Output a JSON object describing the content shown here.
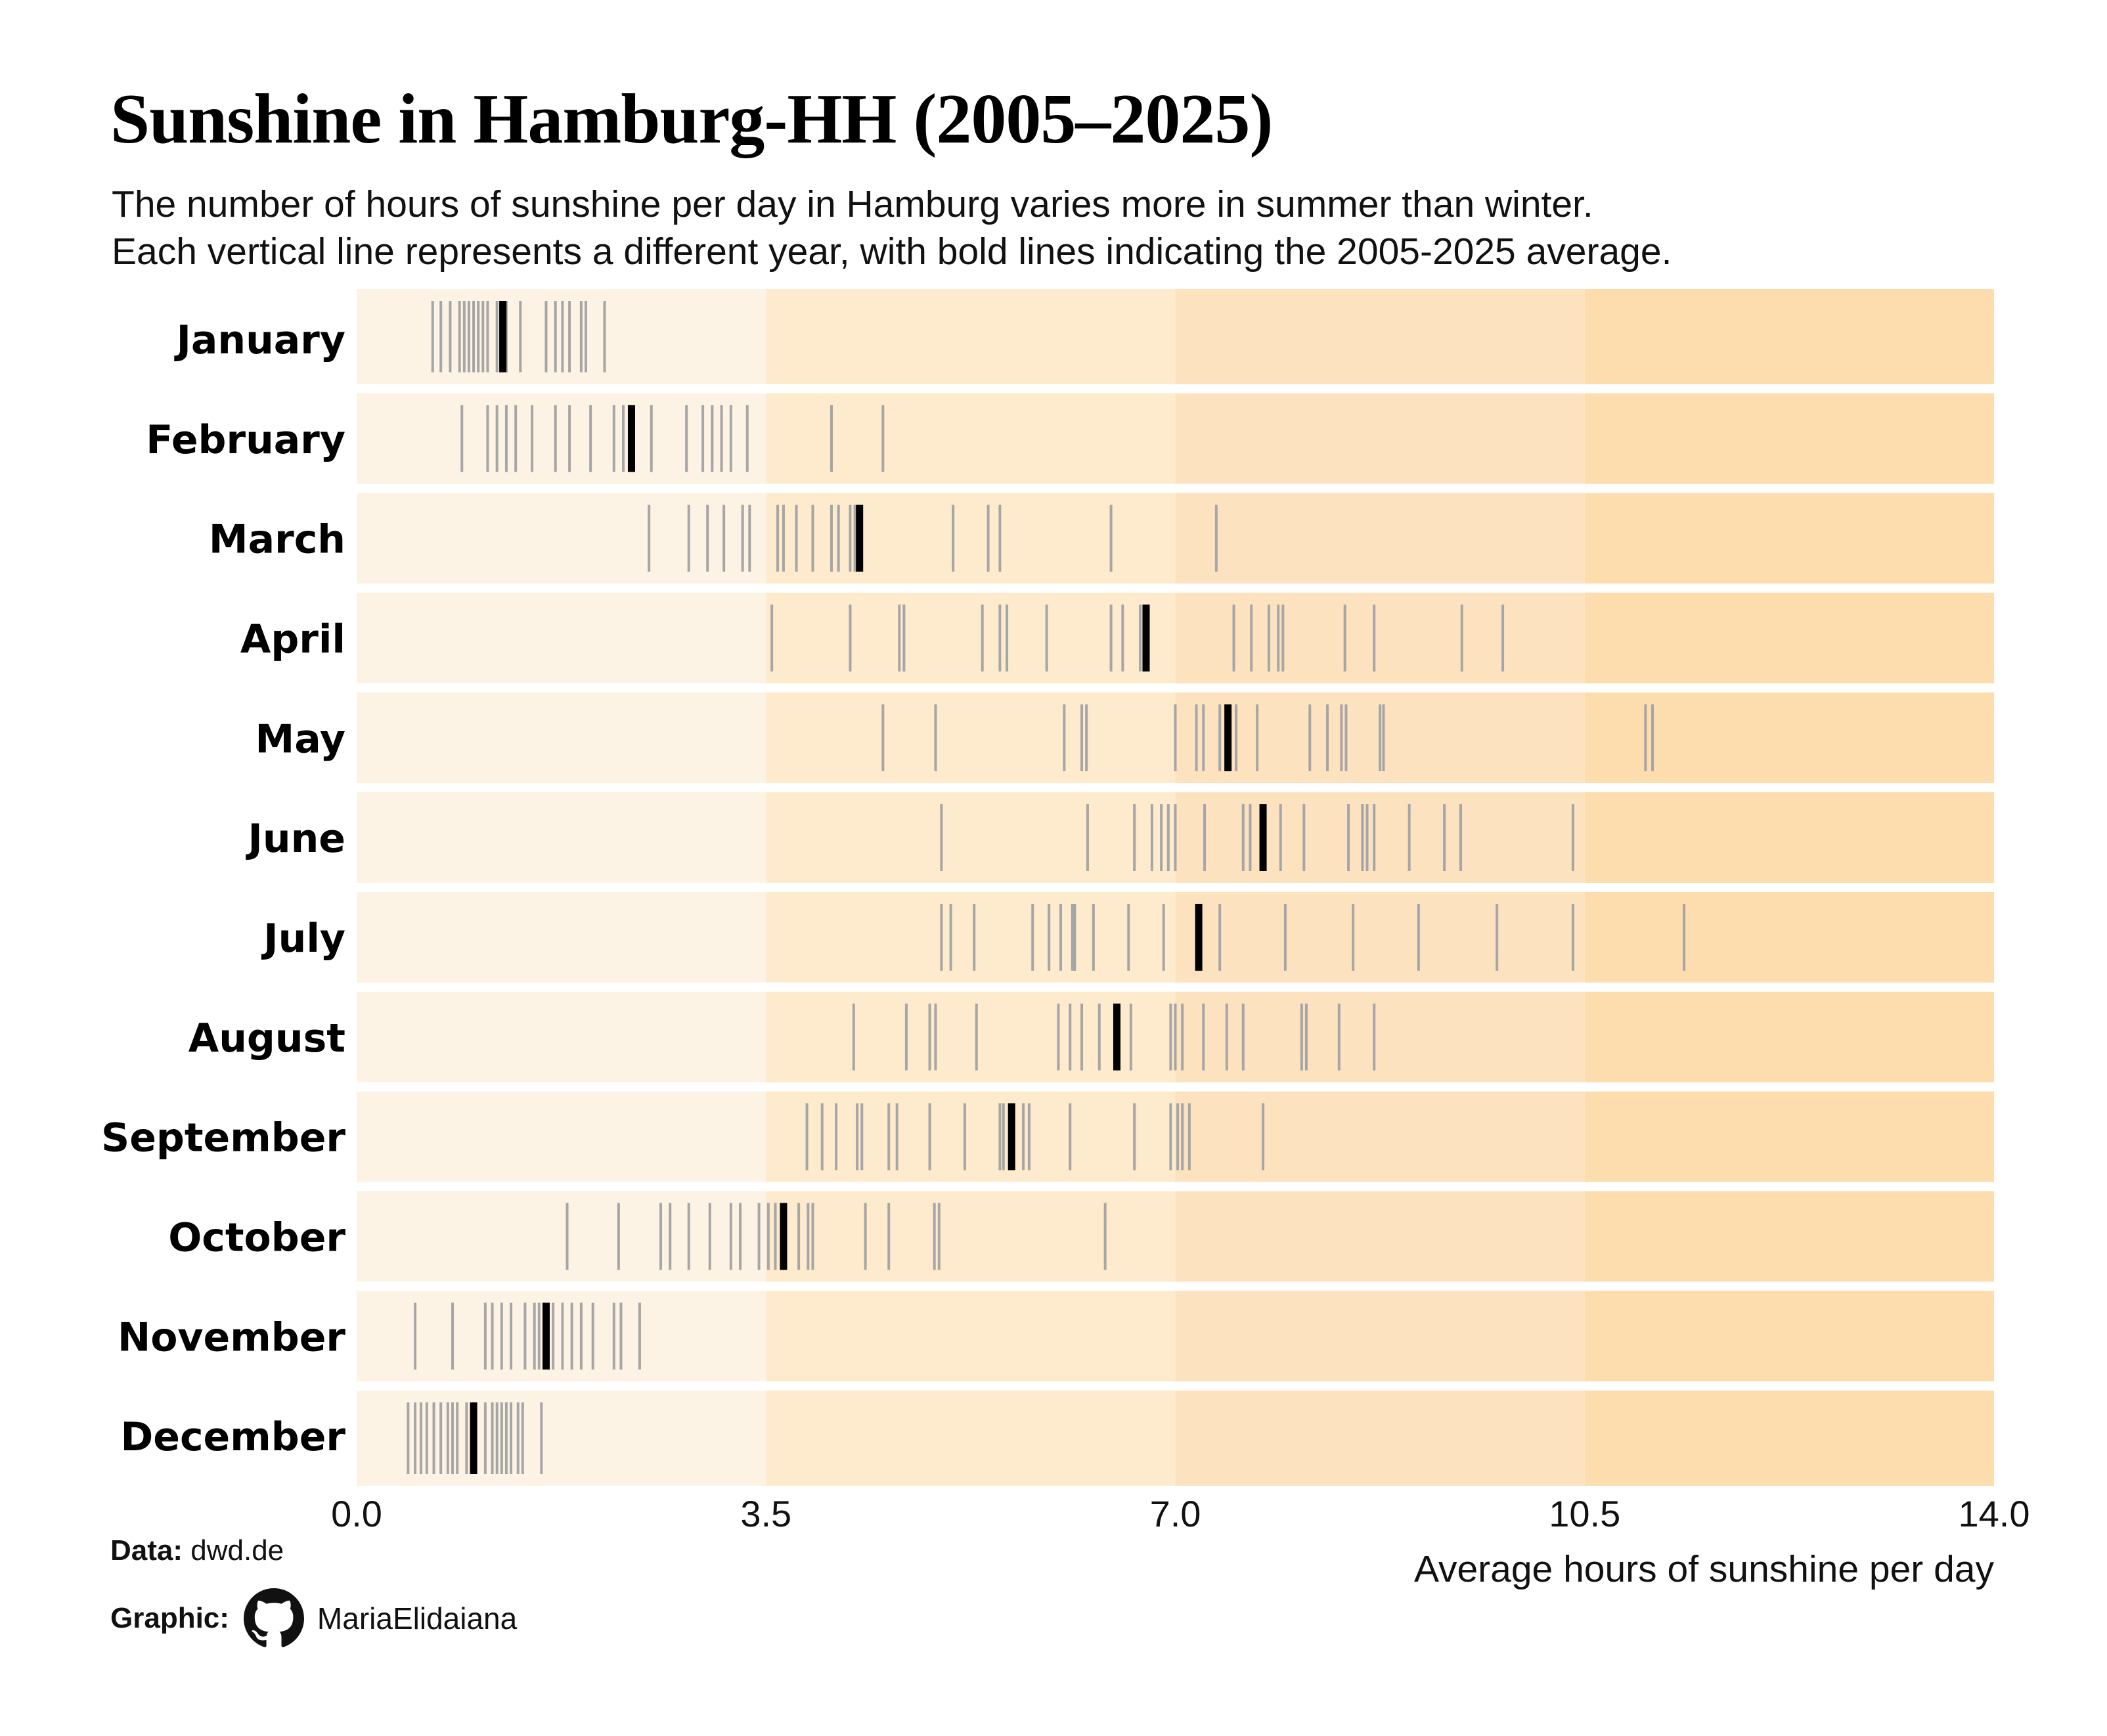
{
  "title": "Sunshine in Hamburg-HH (2005–2025)",
  "subtitle": {
    "line1": "The number of hours of sunshine per day in Hamburg varies more in summer than winter.",
    "line2": "Each vertical line represents a different year, with bold lines indicating the 2005-2025 average."
  },
  "credits": {
    "data_label": "Data:",
    "data_value": "dwd.de",
    "graphic_label": "Graphic:",
    "graphic_value": "MariaElidaiana",
    "graphic_icon": "github-icon"
  },
  "colors": {
    "band_0_3_5": "#fdf3e4",
    "band_3_5_7": "#feebcd",
    "band_7_10_5": "#fde2c0",
    "band_10_5_14": "#fddcad",
    "year_line": "#a6a6a6",
    "average_line": "#000000"
  },
  "chart_data": {
    "type": "strip",
    "xlabel": "Average hours of sunshine per day",
    "ylabel": "",
    "xlim": [
      0,
      14
    ],
    "xticks": [
      0,
      3.5,
      7,
      10.5,
      14
    ],
    "xtick_labels": [
      "0.0",
      "3.5",
      "7.0",
      "10.5",
      "14.0"
    ],
    "shaded_bands": [
      [
        0,
        3.5
      ],
      [
        3.5,
        7
      ],
      [
        7,
        10.5
      ],
      [
        10.5,
        14
      ]
    ],
    "series": [
      {
        "name": "January",
        "average": 1.25,
        "years": [
          0.65,
          0.72,
          0.8,
          0.88,
          0.92,
          0.96,
          1.0,
          1.04,
          1.08,
          1.12,
          1.2,
          1.28,
          1.4,
          1.62,
          1.7,
          1.76,
          1.82,
          1.92,
          1.96,
          2.12
        ]
      },
      {
        "name": "February",
        "average": 2.35,
        "years": [
          0.9,
          1.12,
          1.2,
          1.28,
          1.36,
          1.5,
          1.7,
          1.82,
          2.0,
          2.2,
          2.28,
          2.52,
          2.82,
          2.96,
          3.04,
          3.12,
          3.2,
          3.34,
          4.06,
          4.5
        ]
      },
      {
        "name": "March",
        "average": 4.3,
        "years": [
          2.5,
          2.84,
          3.0,
          3.14,
          3.3,
          3.36,
          3.6,
          3.65,
          3.76,
          3.9,
          4.06,
          4.12,
          4.22,
          4.26,
          5.1,
          5.4,
          5.5,
          6.45,
          7.35
        ]
      },
      {
        "name": "April",
        "average": 6.75,
        "years": [
          3.55,
          4.22,
          4.64,
          4.68,
          5.35,
          5.5,
          5.56,
          5.9,
          6.45,
          6.55,
          6.7,
          7.5,
          7.65,
          7.8,
          7.88,
          7.92,
          8.45,
          8.7,
          9.45,
          9.8
        ]
      },
      {
        "name": "May",
        "average": 7.45,
        "years": [
          4.5,
          4.95,
          6.05,
          6.2,
          6.24,
          7.0,
          7.18,
          7.24,
          7.38,
          7.52,
          7.7,
          8.15,
          8.3,
          8.42,
          8.46,
          8.75,
          8.78,
          11.02,
          11.08
        ]
      },
      {
        "name": "June",
        "average": 7.75,
        "years": [
          5.0,
          6.25,
          6.65,
          6.8,
          6.88,
          6.94,
          7.0,
          7.25,
          7.58,
          7.64,
          7.9,
          8.1,
          8.48,
          8.6,
          8.64,
          8.7,
          9.0,
          9.3,
          9.44,
          10.4
        ]
      },
      {
        "name": "July",
        "average": 7.2,
        "years": [
          5.0,
          5.08,
          5.28,
          5.78,
          5.92,
          6.02,
          6.12,
          6.14,
          6.3,
          6.6,
          6.9,
          7.38,
          7.94,
          8.52,
          9.08,
          9.75,
          10.4,
          11.35
        ]
      },
      {
        "name": "August",
        "average": 6.5,
        "years": [
          4.25,
          4.7,
          4.9,
          4.95,
          5.3,
          6.0,
          6.1,
          6.2,
          6.35,
          6.62,
          6.96,
          7.0,
          7.06,
          7.24,
          7.44,
          7.58,
          8.08,
          8.12,
          8.4,
          8.7
        ]
      },
      {
        "name": "September",
        "average": 5.6,
        "years": [
          3.85,
          3.98,
          4.1,
          4.28,
          4.32,
          4.55,
          4.62,
          4.9,
          5.2,
          5.5,
          5.53,
          5.7,
          5.75,
          6.1,
          6.65,
          6.96,
          7.02,
          7.06,
          7.12,
          7.75
        ]
      },
      {
        "name": "October",
        "average": 3.65,
        "years": [
          1.8,
          2.24,
          2.6,
          2.68,
          2.84,
          3.02,
          3.2,
          3.28,
          3.44,
          3.52,
          3.58,
          3.78,
          3.86,
          3.9,
          4.35,
          4.55,
          4.94,
          4.98,
          6.4
        ]
      },
      {
        "name": "November",
        "average": 1.62,
        "years": [
          0.5,
          0.82,
          1.1,
          1.16,
          1.24,
          1.32,
          1.44,
          1.52,
          1.56,
          1.68,
          1.76,
          1.84,
          1.92,
          2.02,
          2.2,
          2.26,
          2.42
        ]
      },
      {
        "name": "December",
        "average": 1.0,
        "years": [
          0.44,
          0.5,
          0.55,
          0.6,
          0.66,
          0.72,
          0.78,
          0.82,
          0.86,
          0.94,
          1.1,
          1.16,
          1.2,
          1.24,
          1.28,
          1.32,
          1.38,
          1.42,
          1.58
        ]
      }
    ]
  }
}
